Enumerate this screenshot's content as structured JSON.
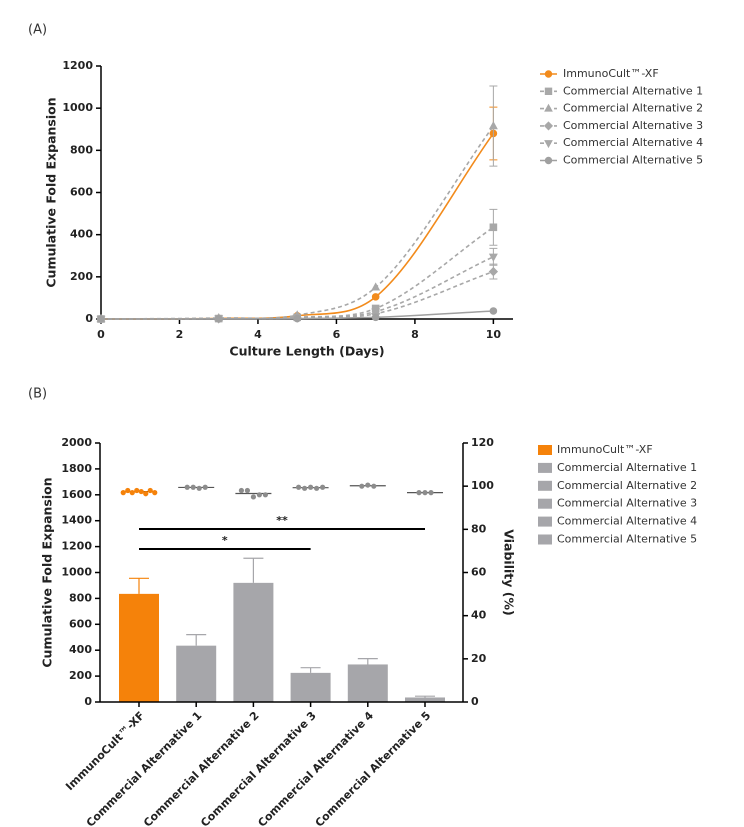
{
  "chart_data": [
    {
      "type": "line",
      "panel_label": "(A)",
      "xlabel": "Culture Length (Days)",
      "ylabel": "Cumulative Fold Expansion",
      "x": [
        0,
        3,
        5,
        7,
        10
      ],
      "xlim": [
        0,
        10.5
      ],
      "xticks": [
        0,
        2,
        4,
        6,
        8,
        10
      ],
      "ylim": [
        0,
        1200
      ],
      "yticks": [
        0,
        200,
        400,
        600,
        800,
        1000,
        1200
      ],
      "legend": "right",
      "series": [
        {
          "name": "ImmunoCult™-XF",
          "color": "#f28b1c",
          "marker": "circle",
          "dash": false,
          "values": [
            0,
            3,
            15,
            105,
            880
          ],
          "errors": [
            null,
            null,
            null,
            null,
            125
          ]
        },
        {
          "name": "Commercial Alternative 1",
          "color": "#a8a8a8",
          "marker": "square",
          "dash": true,
          "values": [
            0,
            2,
            8,
            50,
            435
          ],
          "errors": [
            null,
            null,
            null,
            null,
            85
          ]
        },
        {
          "name": "Commercial Alternative 2",
          "color": "#a8a8a8",
          "marker": "triangle",
          "dash": true,
          "values": [
            0,
            5,
            18,
            150,
            915
          ],
          "errors": [
            null,
            null,
            null,
            null,
            190
          ]
        },
        {
          "name": "Commercial Alternative 3",
          "color": "#a8a8a8",
          "marker": "diamond",
          "dash": true,
          "values": [
            0,
            1,
            5,
            25,
            225
          ],
          "errors": [
            null,
            null,
            null,
            null,
            35
          ]
        },
        {
          "name": "Commercial Alternative 4",
          "color": "#a8a8a8",
          "marker": "triangle-down",
          "dash": true,
          "values": [
            0,
            2,
            6,
            35,
            295
          ],
          "errors": [
            null,
            null,
            null,
            null,
            40
          ]
        },
        {
          "name": "Commercial Alternative 5",
          "color": "#a0a0a0",
          "marker": "circle",
          "dash": false,
          "values": [
            0,
            1,
            2,
            8,
            38
          ],
          "errors": [
            null,
            null,
            null,
            null,
            null
          ]
        }
      ]
    },
    {
      "type": "bar",
      "panel_label": "(B)",
      "ylabel": "Cumulative Fold Expansion",
      "y2label": "Viability (%)",
      "categories": [
        "ImmunoCult™-XF",
        "Commercial Alternative 1",
        "Commercial Alternative 2",
        "Commercial Alternative 3",
        "Commercial Alternative 4",
        "Commercial Alternative 5"
      ],
      "values": [
        835,
        435,
        920,
        225,
        290,
        35
      ],
      "errors": [
        120,
        85,
        190,
        40,
        45,
        10
      ],
      "colors": [
        "#f5820a",
        "#a6a6aa",
        "#a6a6aa",
        "#a6a6aa",
        "#a6a6aa",
        "#a6a6aa"
      ],
      "ylim": [
        0,
        2000
      ],
      "yticks": [
        0,
        200,
        400,
        600,
        800,
        1000,
        1200,
        1400,
        1600,
        1800,
        2000
      ],
      "y2lim": [
        0,
        120
      ],
      "y2ticks": [
        0,
        20,
        40,
        60,
        80,
        100,
        120
      ],
      "legend": "right",
      "viability": {
        "axis": "y2",
        "values": [
          [
            97,
            98,
            97,
            98,
            97.5,
            96.5,
            98,
            97
          ],
          [
            99.5,
            99.5,
            99,
            99.5
          ],
          [
            98,
            98,
            95,
            96,
            96
          ],
          [
            99.5,
            99,
            99.5,
            99,
            99.5
          ],
          [
            100,
            100.5,
            100
          ],
          [
            97,
            97,
            97
          ]
        ],
        "means": [
          97.5,
          99.4,
          96.6,
          99.3,
          100.2,
          97
        ]
      },
      "annotations": [
        {
          "text": "*",
          "from": 0,
          "to": 3
        },
        {
          "text": "**",
          "from": 0,
          "to": 5
        }
      ]
    }
  ]
}
